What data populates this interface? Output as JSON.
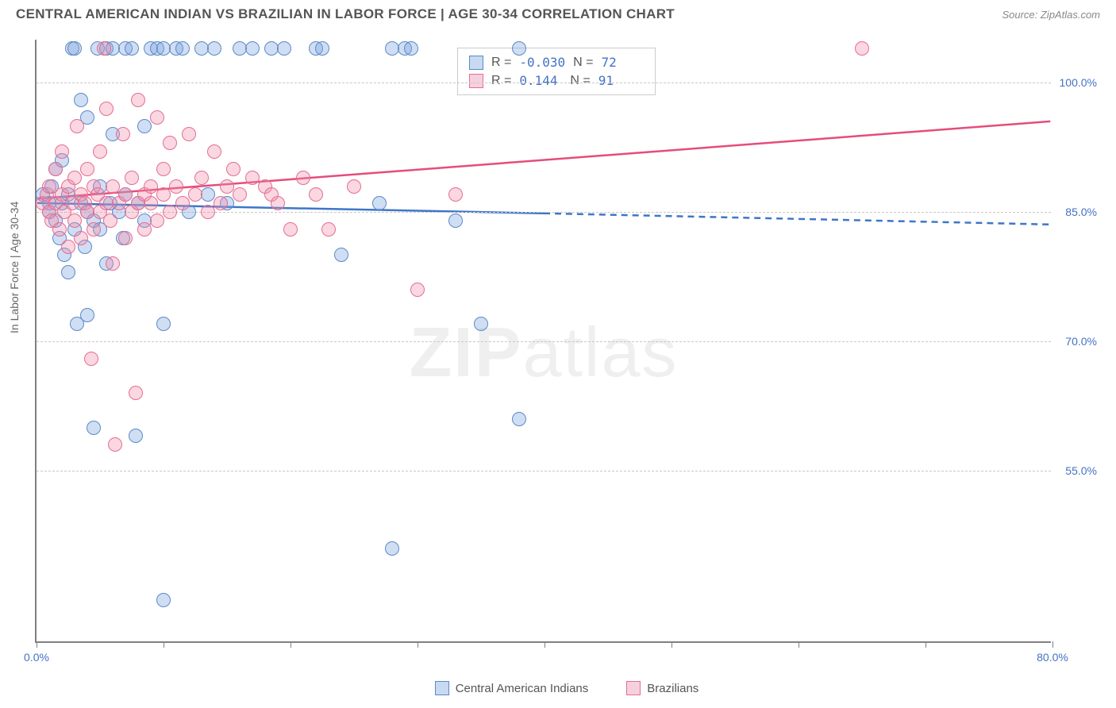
{
  "header": {
    "title": "CENTRAL AMERICAN INDIAN VS BRAZILIAN IN LABOR FORCE | AGE 30-34 CORRELATION CHART",
    "source": "Source: ZipAtlas.com"
  },
  "chart": {
    "type": "scatter",
    "y_axis_label": "In Labor Force | Age 30-34",
    "watermark": "ZIPatlas",
    "x_range": [
      0,
      80
    ],
    "y_range": [
      35,
      105
    ],
    "y_ticks": [
      55.0,
      70.0,
      85.0,
      100.0
    ],
    "y_tick_labels": [
      "55.0%",
      "70.0%",
      "85.0%",
      "100.0%"
    ],
    "x_ticks": [
      0,
      10,
      20,
      30,
      40,
      50,
      60,
      70,
      80
    ],
    "x_tick_labels_shown": {
      "0": "0.0%",
      "80": "80.0%"
    },
    "marker_radius": 9,
    "marker_stroke_width": 1.5,
    "grid_color": "#c8c8c8",
    "axis_color": "#808080",
    "background": "#ffffff",
    "series": [
      {
        "name": "Central American Indians",
        "fill": "rgba(120,160,220,0.35)",
        "stroke": "#5a8ac8",
        "legend_fill": "#c7daf2",
        "legend_stroke": "#5a8ac8",
        "r_value": "-0.030",
        "n_value": "72",
        "trend": {
          "x1": 0,
          "y1": 86.0,
          "x2_solid": 40,
          "y2_solid": 84.8,
          "x2": 80,
          "y2": 83.5,
          "color": "#3e76c7",
          "width": 2.5
        },
        "points": [
          [
            0.5,
            87
          ],
          [
            1,
            86
          ],
          [
            1,
            85
          ],
          [
            1.2,
            88
          ],
          [
            1.5,
            84
          ],
          [
            1.5,
            90
          ],
          [
            1.8,
            82
          ],
          [
            2,
            86
          ],
          [
            2,
            91
          ],
          [
            2.2,
            80
          ],
          [
            2.5,
            87
          ],
          [
            2.5,
            78
          ],
          [
            2.8,
            104
          ],
          [
            3,
            104
          ],
          [
            3,
            83
          ],
          [
            3.2,
            72
          ],
          [
            3.5,
            86
          ],
          [
            3.5,
            98
          ],
          [
            3.8,
            81
          ],
          [
            4,
            85
          ],
          [
            4,
            96
          ],
          [
            4,
            73
          ],
          [
            4.5,
            84
          ],
          [
            4.5,
            60
          ],
          [
            4.8,
            104
          ],
          [
            5,
            88
          ],
          [
            5,
            83
          ],
          [
            5.5,
            104
          ],
          [
            5.5,
            79
          ],
          [
            5.8,
            86
          ],
          [
            6,
            104
          ],
          [
            6,
            94
          ],
          [
            6.5,
            85
          ],
          [
            6.8,
            82
          ],
          [
            7,
            104
          ],
          [
            7,
            87
          ],
          [
            7.5,
            104
          ],
          [
            7.8,
            59
          ],
          [
            8,
            86
          ],
          [
            8.5,
            84
          ],
          [
            8.5,
            95
          ],
          [
            9,
            104
          ],
          [
            9.5,
            104
          ],
          [
            10,
            104
          ],
          [
            10,
            72
          ],
          [
            10,
            40
          ],
          [
            11,
            104
          ],
          [
            11.5,
            104
          ],
          [
            12,
            85
          ],
          [
            13,
            104
          ],
          [
            13.5,
            87
          ],
          [
            14,
            104
          ],
          [
            15,
            86
          ],
          [
            16,
            104
          ],
          [
            17,
            104
          ],
          [
            18.5,
            104
          ],
          [
            19.5,
            104
          ],
          [
            22,
            104
          ],
          [
            22.5,
            104
          ],
          [
            24,
            80
          ],
          [
            27,
            86
          ],
          [
            28,
            104
          ],
          [
            28,
            46
          ],
          [
            29,
            104
          ],
          [
            29.5,
            104
          ],
          [
            33,
            84
          ],
          [
            35,
            72
          ],
          [
            38,
            61
          ],
          [
            38,
            104
          ]
        ]
      },
      {
        "name": "Brazilians",
        "fill": "rgba(240,140,170,0.35)",
        "stroke": "#e56d94",
        "legend_fill": "#f7d0dd",
        "legend_stroke": "#e56d94",
        "r_value": "0.144",
        "n_value": "91",
        "trend": {
          "x1": 0,
          "y1": 86.5,
          "x2_solid": 80,
          "y2_solid": 95.5,
          "x2": 80,
          "y2": 95.5,
          "color": "#e54d7a",
          "width": 2.5
        },
        "points": [
          [
            0.5,
            86
          ],
          [
            0.8,
            87
          ],
          [
            1,
            85
          ],
          [
            1,
            88
          ],
          [
            1.2,
            84
          ],
          [
            1.5,
            90
          ],
          [
            1.5,
            86
          ],
          [
            1.8,
            83
          ],
          [
            2,
            87
          ],
          [
            2,
            92
          ],
          [
            2.2,
            85
          ],
          [
            2.5,
            88
          ],
          [
            2.5,
            81
          ],
          [
            2.8,
            86
          ],
          [
            3,
            89
          ],
          [
            3,
            84
          ],
          [
            3.2,
            95
          ],
          [
            3.5,
            87
          ],
          [
            3.5,
            82
          ],
          [
            3.8,
            86
          ],
          [
            4,
            90
          ],
          [
            4,
            85
          ],
          [
            4.3,
            68
          ],
          [
            4.5,
            88
          ],
          [
            4.5,
            83
          ],
          [
            4.8,
            87
          ],
          [
            5,
            92
          ],
          [
            5,
            85
          ],
          [
            5.3,
            104
          ],
          [
            5.5,
            86
          ],
          [
            5.5,
            97
          ],
          [
            5.8,
            84
          ],
          [
            6,
            88
          ],
          [
            6,
            79
          ],
          [
            6.2,
            58
          ],
          [
            6.5,
            86
          ],
          [
            6.8,
            94
          ],
          [
            7,
            87
          ],
          [
            7,
            82
          ],
          [
            7.5,
            89
          ],
          [
            7.5,
            85
          ],
          [
            7.8,
            64
          ],
          [
            8,
            86
          ],
          [
            8,
            98
          ],
          [
            8.5,
            87
          ],
          [
            8.5,
            83
          ],
          [
            9,
            88
          ],
          [
            9,
            86
          ],
          [
            9.5,
            96
          ],
          [
            9.5,
            84
          ],
          [
            10,
            87
          ],
          [
            10,
            90
          ],
          [
            10.5,
            85
          ],
          [
            10.5,
            93
          ],
          [
            11,
            88
          ],
          [
            11.5,
            86
          ],
          [
            12,
            94
          ],
          [
            12.5,
            87
          ],
          [
            13,
            89
          ],
          [
            13.5,
            85
          ],
          [
            14,
            92
          ],
          [
            14.5,
            86
          ],
          [
            15,
            88
          ],
          [
            15.5,
            90
          ],
          [
            16,
            87
          ],
          [
            17,
            89
          ],
          [
            18,
            88
          ],
          [
            18.5,
            87
          ],
          [
            19,
            86
          ],
          [
            20,
            83
          ],
          [
            21,
            89
          ],
          [
            22,
            87
          ],
          [
            23,
            83
          ],
          [
            25,
            88
          ],
          [
            30,
            76
          ],
          [
            33,
            87
          ],
          [
            65,
            104
          ]
        ]
      }
    ],
    "stats_box": {
      "label_r": "R =",
      "label_n": "N ="
    },
    "legend": {
      "items": [
        "Central American Indians",
        "Brazilians"
      ]
    }
  }
}
